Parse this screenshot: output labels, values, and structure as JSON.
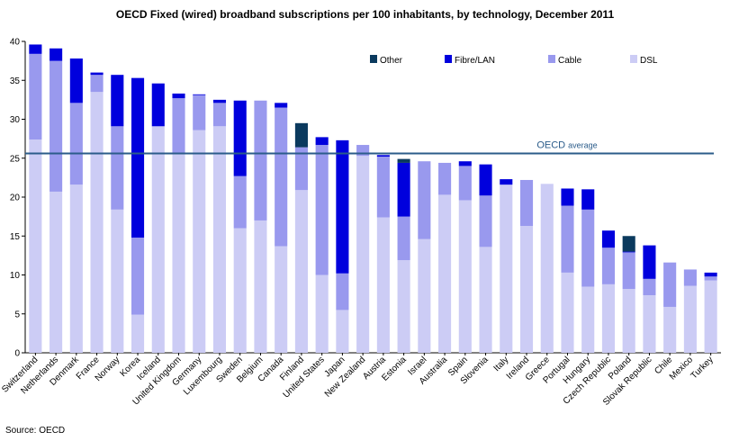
{
  "chart_data": {
    "type": "bar",
    "stacked": true,
    "title": "OECD  Fixed (wired) broadband subscriptions per 100 inhabitants, by technology,  December 2011",
    "source": "Source: OECD",
    "xlabel": "",
    "ylabel": "",
    "ylim": [
      0,
      40
    ],
    "yticks": [
      0,
      5,
      10,
      15,
      20,
      25,
      30,
      35,
      40
    ],
    "grid": false,
    "legend_position": "top-right",
    "categories": [
      "Switzerland",
      "Netherlands",
      "Denmark",
      "France",
      "Norway",
      "Korea",
      "Iceland",
      "United Kingdom",
      "Germany",
      "Luxembourg",
      "Sweden",
      "Belgium",
      "Canada",
      "Finland",
      "United States",
      "Japan",
      "New Zealand",
      "Austria",
      "Estonia",
      "Israel",
      "Australia",
      "Spain",
      "Slovenia",
      "Italy",
      "Ireland",
      "Greece",
      "Portugal",
      "Hungary",
      "Czech Republic",
      "Poland",
      "Slovak Republic",
      "Chile",
      "Mexico",
      "Turkey"
    ],
    "series": [
      {
        "name": "DSL",
        "color": "#ccccf5",
        "values": [
          27.4,
          20.7,
          21.6,
          33.5,
          18.4,
          4.9,
          29.1,
          25.7,
          28.6,
          29.1,
          16.0,
          17.0,
          13.7,
          20.9,
          10.0,
          5.5,
          25.3,
          17.4,
          11.9,
          14.6,
          20.3,
          19.6,
          13.6,
          21.6,
          16.3,
          21.7,
          10.3,
          8.5,
          8.8,
          8.2,
          7.4,
          5.9,
          8.6,
          9.3
        ]
      },
      {
        "name": "Cable",
        "color": "#9999ee",
        "values": [
          11.0,
          16.8,
          10.5,
          2.2,
          10.7,
          9.9,
          0.0,
          7.0,
          4.5,
          3.0,
          6.7,
          15.4,
          17.8,
          5.5,
          16.7,
          4.7,
          1.4,
          7.8,
          5.6,
          10.0,
          4.1,
          4.4,
          6.6,
          0.0,
          5.9,
          0.0,
          8.6,
          9.9,
          4.7,
          4.7,
          2.1,
          5.7,
          2.1,
          0.5
        ]
      },
      {
        "name": "Fibre/LAN",
        "color": "#0000dd",
        "values": [
          1.2,
          1.6,
          5.7,
          0.3,
          6.6,
          20.5,
          5.5,
          0.6,
          0.1,
          0.4,
          9.7,
          0.0,
          0.6,
          0.0,
          1.0,
          17.1,
          0.0,
          0.2,
          6.9,
          0.0,
          0.0,
          0.6,
          4.0,
          0.7,
          0.0,
          0.0,
          2.2,
          2.6,
          2.2,
          0.1,
          4.3,
          0.0,
          0.0,
          0.5
        ]
      },
      {
        "name": "Other",
        "color": "#0b3a5e",
        "values": [
          0.0,
          0.0,
          0.0,
          0.0,
          0.0,
          0.0,
          0.0,
          0.0,
          0.0,
          0.0,
          0.0,
          0.0,
          0.0,
          3.1,
          0.0,
          0.0,
          0.0,
          0.0,
          0.5,
          0.0,
          0.0,
          0.0,
          0.0,
          0.0,
          0.0,
          0.0,
          0.0,
          0.0,
          0.0,
          2.0,
          0.0,
          0.0,
          0.0,
          0.0
        ]
      }
    ],
    "legend_order": [
      "Other",
      "Fibre/LAN",
      "Cable",
      "DSL"
    ],
    "reference_line": {
      "label": "OECD average",
      "value": 25.6,
      "color": "#2b5c8a"
    }
  }
}
